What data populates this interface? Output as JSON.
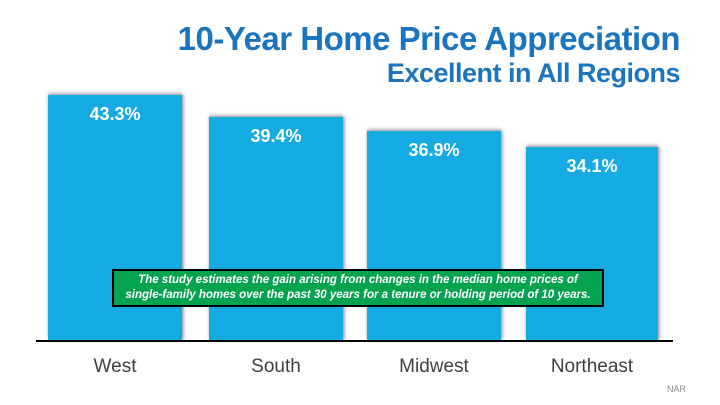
{
  "chart_data": {
    "type": "bar",
    "title": "10-Year Home Price Appreciation",
    "subtitle": "Excellent in All Regions",
    "categories": [
      "West",
      "South",
      "Midwest",
      "Northeast"
    ],
    "values": [
      43.3,
      39.4,
      36.9,
      34.1
    ],
    "value_labels": [
      "43.3%",
      "39.4%",
      "36.9%",
      "34.1%"
    ],
    "ylabel": "",
    "xlabel": "",
    "ylim": [
      0,
      48
    ],
    "grid": false,
    "legend": "none",
    "bar_color": "#15aae1",
    "title_color": "#1b74be",
    "annotation_line1": "The study estimates the gain arising from changes in the median home prices of",
    "annotation_line2": "single-family homes over the past 30 years for a tenure or holding period of 10 years.",
    "annotation_bg_color": "#05a24f",
    "source": "NAR"
  }
}
